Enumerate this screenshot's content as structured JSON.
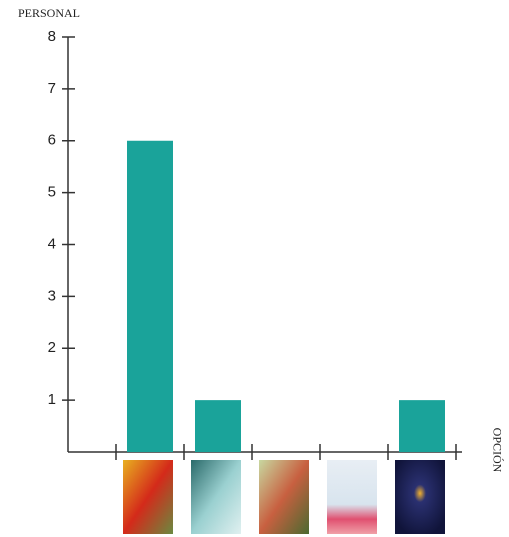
{
  "chart_data": {
    "type": "bar",
    "y_label": "PERSONAL",
    "x_label": "OPCIÓN",
    "categories": [
      null,
      null,
      null,
      null,
      null
    ],
    "values": [
      6,
      1,
      0,
      0,
      1
    ],
    "color": "#1aa39a",
    "ylim": [
      0,
      8
    ],
    "yticks": [
      1,
      2,
      3,
      4,
      5,
      6,
      7,
      8
    ]
  }
}
